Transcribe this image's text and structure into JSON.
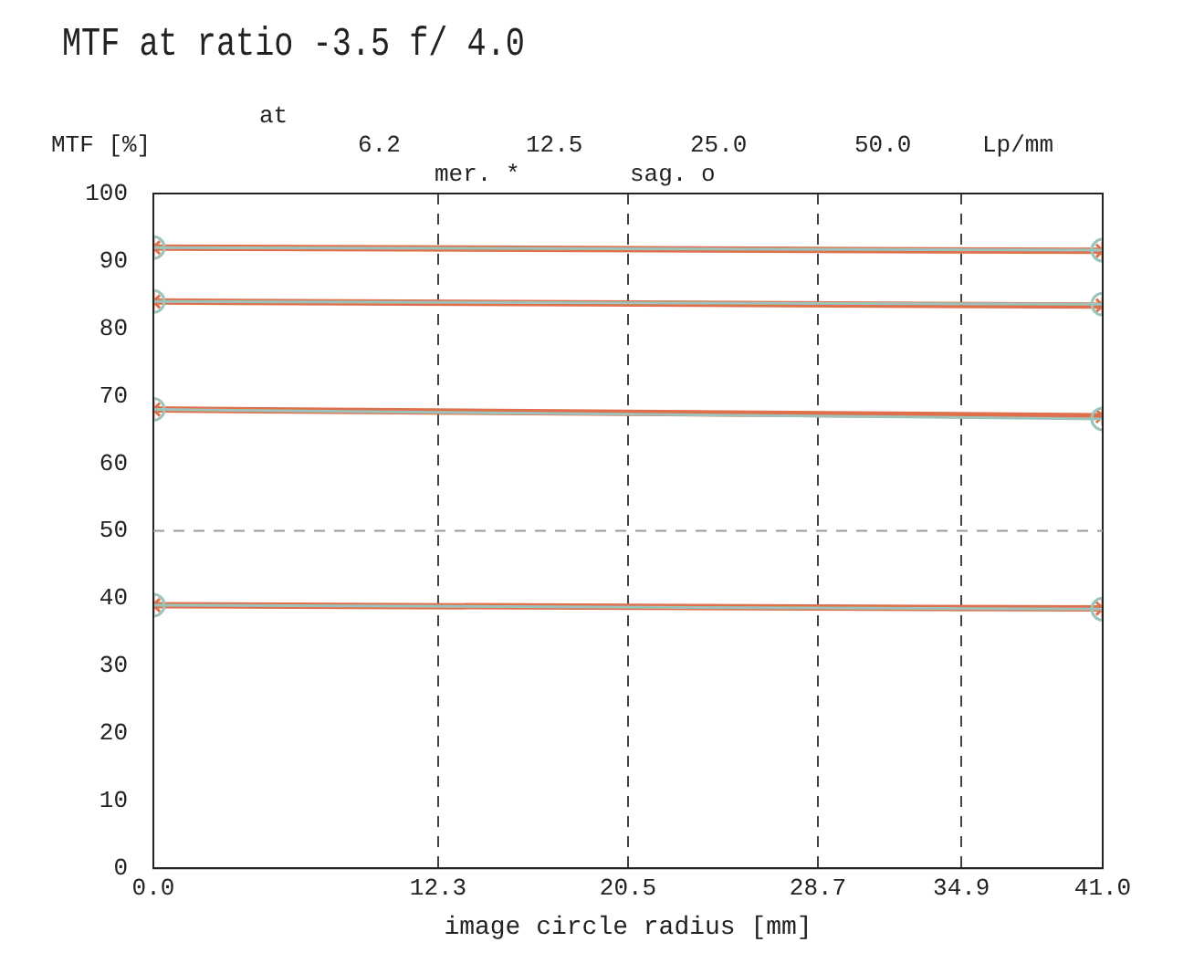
{
  "chart_data": {
    "type": "line",
    "title": "MTF at ratio -3.5   f/ 4.0",
    "xlabel": "image circle radius [mm]",
    "ylabel": "MTF [%]",
    "annotations": [
      "at",
      "6.2",
      "12.5",
      "25.0",
      "50.0",
      "Lp/mm",
      "mer. *",
      "sag. o"
    ],
    "x": [
      0,
      41
    ],
    "series": [
      {
        "color": "#e0704c",
        "marker": "cross",
        "values": [
          92,
          91.5
        ]
      },
      {
        "color": "#9cc4bc",
        "marker": "circle",
        "values": [
          92,
          91.6
        ]
      },
      {
        "color": "#e0704c",
        "marker": "cross",
        "values": [
          84,
          83.4
        ]
      },
      {
        "color": "#9cc4bc",
        "marker": "circle",
        "values": [
          84,
          83.6
        ]
      },
      {
        "color": "#e0704c",
        "marker": "cross",
        "values": [
          68,
          67
        ]
      },
      {
        "color": "#9cc4bc",
        "marker": "circle",
        "values": [
          68,
          66.6
        ]
      },
      {
        "color": "#e0704c",
        "marker": "cross",
        "values": [
          39,
          38.5
        ]
      },
      {
        "color": "#9cc4bc",
        "marker": "circle",
        "values": [
          39,
          38.4
        ]
      }
    ],
    "xlim": [
      0,
      41
    ],
    "xticks": [
      {
        "value": 0,
        "label": "0.0"
      },
      12.3,
      20.5,
      28.7,
      34.9,
      {
        "value": 41,
        "label": "41.0"
      }
    ],
    "ylim": [
      0,
      100
    ],
    "yticks": [
      0,
      10,
      20,
      30,
      40,
      50,
      60,
      70,
      80,
      90,
      100
    ],
    "ref_lines": [
      {
        "axis": "y",
        "value": 50,
        "line_style": "dashed",
        "color": "#999999"
      }
    ],
    "grid": "x",
    "legend": false
  }
}
